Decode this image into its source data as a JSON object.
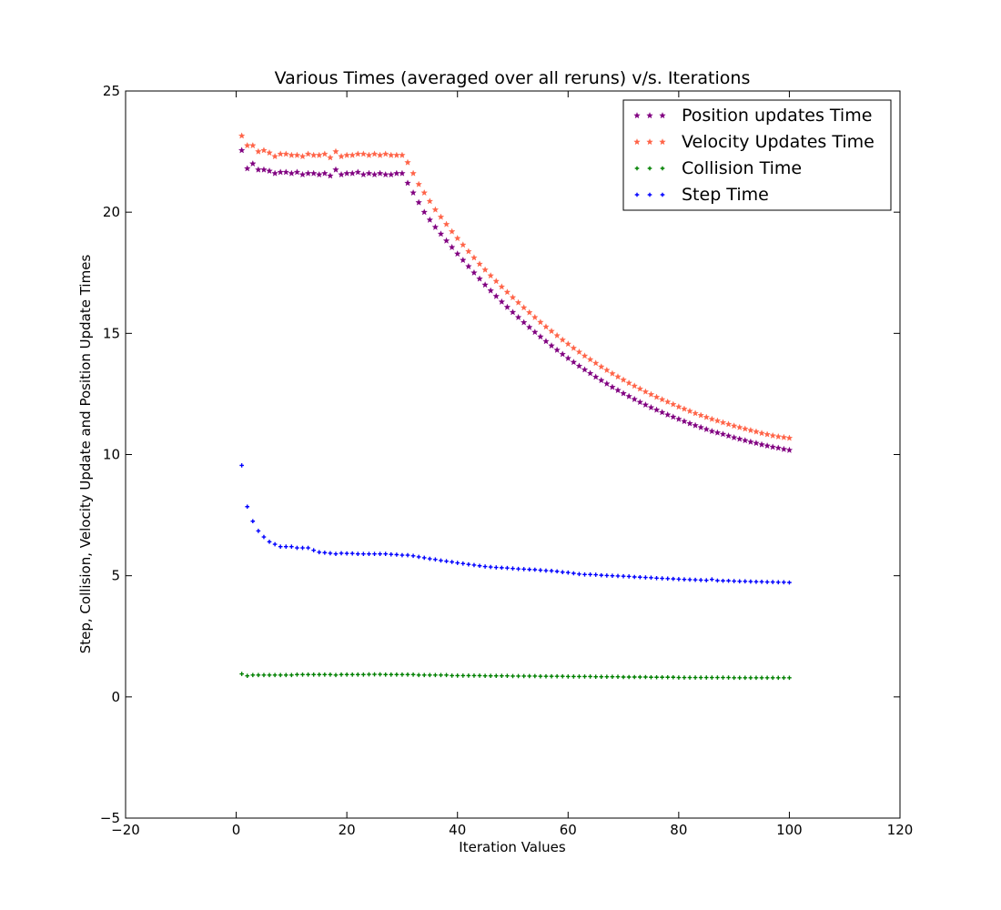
{
  "chart_data": {
    "type": "scatter",
    "title": "Various Times (averaged over all reruns) v/s. Iterations",
    "xlabel": "Iteration Values",
    "ylabel": "Step, Collision, Velocity Update and Position Update Times",
    "xlim": [
      -20,
      120
    ],
    "ylim": [
      -5,
      25
    ],
    "xticks": [
      -20,
      0,
      20,
      40,
      60,
      80,
      100,
      120
    ],
    "yticks": [
      -5,
      0,
      5,
      10,
      15,
      20,
      25
    ],
    "xtick_labels": [
      "−20",
      "0",
      "20",
      "40",
      "60",
      "80",
      "100",
      "120"
    ],
    "ytick_labels": [
      "−5",
      "0",
      "5",
      "10",
      "15",
      "20",
      "25"
    ],
    "grid": false,
    "legend_position": "top-right",
    "x": [
      1,
      2,
      3,
      4,
      5,
      6,
      7,
      8,
      9,
      10,
      11,
      12,
      13,
      14,
      15,
      16,
      17,
      18,
      19,
      20,
      21,
      22,
      23,
      24,
      25,
      26,
      27,
      28,
      29,
      30,
      31,
      32,
      33,
      34,
      35,
      36,
      37,
      38,
      39,
      40,
      41,
      42,
      43,
      44,
      45,
      46,
      47,
      48,
      49,
      50,
      51,
      52,
      53,
      54,
      55,
      56,
      57,
      58,
      59,
      60,
      61,
      62,
      63,
      64,
      65,
      66,
      67,
      68,
      69,
      70,
      71,
      72,
      73,
      74,
      75,
      76,
      77,
      78,
      79,
      80,
      81,
      82,
      83,
      84,
      85,
      86,
      87,
      88,
      89,
      90,
      91,
      92,
      93,
      94,
      95,
      96,
      97,
      98,
      99,
      100
    ],
    "series": [
      {
        "name": "Position updates Time",
        "color": "#800080",
        "marker": "star",
        "values": [
          22.55,
          21.8,
          22.0,
          21.75,
          21.75,
          21.7,
          21.6,
          21.65,
          21.65,
          21.6,
          21.65,
          21.55,
          21.6,
          21.6,
          21.55,
          21.6,
          21.5,
          21.75,
          21.55,
          21.6,
          21.6,
          21.65,
          21.55,
          21.6,
          21.55,
          21.6,
          21.55,
          21.55,
          21.6,
          21.6,
          21.2,
          20.8,
          20.4,
          20.0,
          19.68,
          19.38,
          19.1,
          18.82,
          18.55,
          18.28,
          18.02,
          17.76,
          17.5,
          17.25,
          17.0,
          16.76,
          16.53,
          16.3,
          16.08,
          15.87,
          15.66,
          15.45,
          15.25,
          15.05,
          14.86,
          14.67,
          14.49,
          14.31,
          14.14,
          13.97,
          13.81,
          13.65,
          13.5,
          13.35,
          13.2,
          13.06,
          12.92,
          12.78,
          12.65,
          12.52,
          12.4,
          12.28,
          12.16,
          12.05,
          11.94,
          11.84,
          11.74,
          11.64,
          11.55,
          11.46,
          11.37,
          11.28,
          11.2,
          11.12,
          11.04,
          10.96,
          10.9,
          10.84,
          10.77,
          10.7,
          10.64,
          10.58,
          10.52,
          10.47,
          10.41,
          10.36,
          10.31,
          10.27,
          10.22,
          10.18
        ]
      },
      {
        "name": "Velocity Updates Time",
        "color": "#ff6347",
        "marker": "star",
        "values": [
          23.15,
          22.75,
          22.75,
          22.5,
          22.55,
          22.45,
          22.3,
          22.4,
          22.4,
          22.35,
          22.35,
          22.3,
          22.4,
          22.35,
          22.35,
          22.4,
          22.25,
          22.5,
          22.3,
          22.35,
          22.35,
          22.4,
          22.4,
          22.35,
          22.4,
          22.35,
          22.4,
          22.35,
          22.35,
          22.35,
          22.05,
          21.6,
          21.15,
          20.8,
          20.45,
          20.1,
          19.8,
          19.5,
          19.2,
          18.92,
          18.65,
          18.38,
          18.12,
          17.86,
          17.62,
          17.38,
          17.15,
          16.92,
          16.7,
          16.48,
          16.27,
          16.06,
          15.86,
          15.66,
          15.46,
          15.27,
          15.09,
          14.91,
          14.73,
          14.56,
          14.39,
          14.23,
          14.07,
          13.92,
          13.77,
          13.62,
          13.48,
          13.34,
          13.21,
          13.08,
          12.95,
          12.83,
          12.71,
          12.59,
          12.48,
          12.37,
          12.27,
          12.17,
          12.07,
          11.97,
          11.88,
          11.79,
          11.7,
          11.62,
          11.54,
          11.46,
          11.39,
          11.32,
          11.25,
          11.18,
          11.12,
          11.06,
          11.0,
          10.94,
          10.88,
          10.83,
          10.78,
          10.74,
          10.71,
          10.68
        ]
      },
      {
        "name": "Collision Time",
        "color": "#008000",
        "marker": "plus",
        "values": [
          0.95,
          0.87,
          0.9,
          0.9,
          0.9,
          0.9,
          0.9,
          0.9,
          0.9,
          0.9,
          0.92,
          0.92,
          0.92,
          0.92,
          0.92,
          0.92,
          0.92,
          0.9,
          0.92,
          0.92,
          0.92,
          0.92,
          0.92,
          0.93,
          0.93,
          0.93,
          0.92,
          0.92,
          0.92,
          0.92,
          0.92,
          0.92,
          0.9,
          0.9,
          0.9,
          0.9,
          0.9,
          0.9,
          0.88,
          0.88,
          0.88,
          0.88,
          0.88,
          0.88,
          0.87,
          0.87,
          0.87,
          0.87,
          0.87,
          0.86,
          0.86,
          0.86,
          0.86,
          0.86,
          0.85,
          0.85,
          0.85,
          0.85,
          0.85,
          0.84,
          0.84,
          0.84,
          0.84,
          0.84,
          0.83,
          0.83,
          0.83,
          0.83,
          0.83,
          0.82,
          0.82,
          0.82,
          0.82,
          0.82,
          0.81,
          0.81,
          0.81,
          0.81,
          0.81,
          0.8,
          0.8,
          0.8,
          0.8,
          0.8,
          0.8,
          0.8,
          0.8,
          0.8,
          0.8,
          0.79,
          0.79,
          0.79,
          0.79,
          0.79,
          0.79,
          0.79,
          0.79,
          0.79,
          0.79,
          0.79
        ]
      },
      {
        "name": "Step Time",
        "color": "#0000ff",
        "marker": "plus",
        "values": [
          9.55,
          7.85,
          7.25,
          6.85,
          6.6,
          6.4,
          6.3,
          6.2,
          6.2,
          6.2,
          6.15,
          6.15,
          6.15,
          6.05,
          5.97,
          5.95,
          5.93,
          5.9,
          5.93,
          5.92,
          5.92,
          5.9,
          5.9,
          5.9,
          5.9,
          5.9,
          5.9,
          5.88,
          5.87,
          5.85,
          5.85,
          5.82,
          5.78,
          5.74,
          5.7,
          5.67,
          5.63,
          5.6,
          5.57,
          5.53,
          5.5,
          5.47,
          5.44,
          5.41,
          5.38,
          5.36,
          5.34,
          5.33,
          5.32,
          5.3,
          5.28,
          5.27,
          5.26,
          5.25,
          5.23,
          5.21,
          5.2,
          5.18,
          5.15,
          5.13,
          5.1,
          5.07,
          5.05,
          5.05,
          5.04,
          5.02,
          5.01,
          5.0,
          4.99,
          4.98,
          4.97,
          4.95,
          4.94,
          4.93,
          4.92,
          4.9,
          4.89,
          4.88,
          4.87,
          4.86,
          4.85,
          4.84,
          4.83,
          4.82,
          4.81,
          4.85,
          4.8,
          4.79,
          4.79,
          4.78,
          4.77,
          4.77,
          4.76,
          4.75,
          4.75,
          4.74,
          4.74,
          4.73,
          4.73,
          4.72
        ]
      }
    ]
  }
}
